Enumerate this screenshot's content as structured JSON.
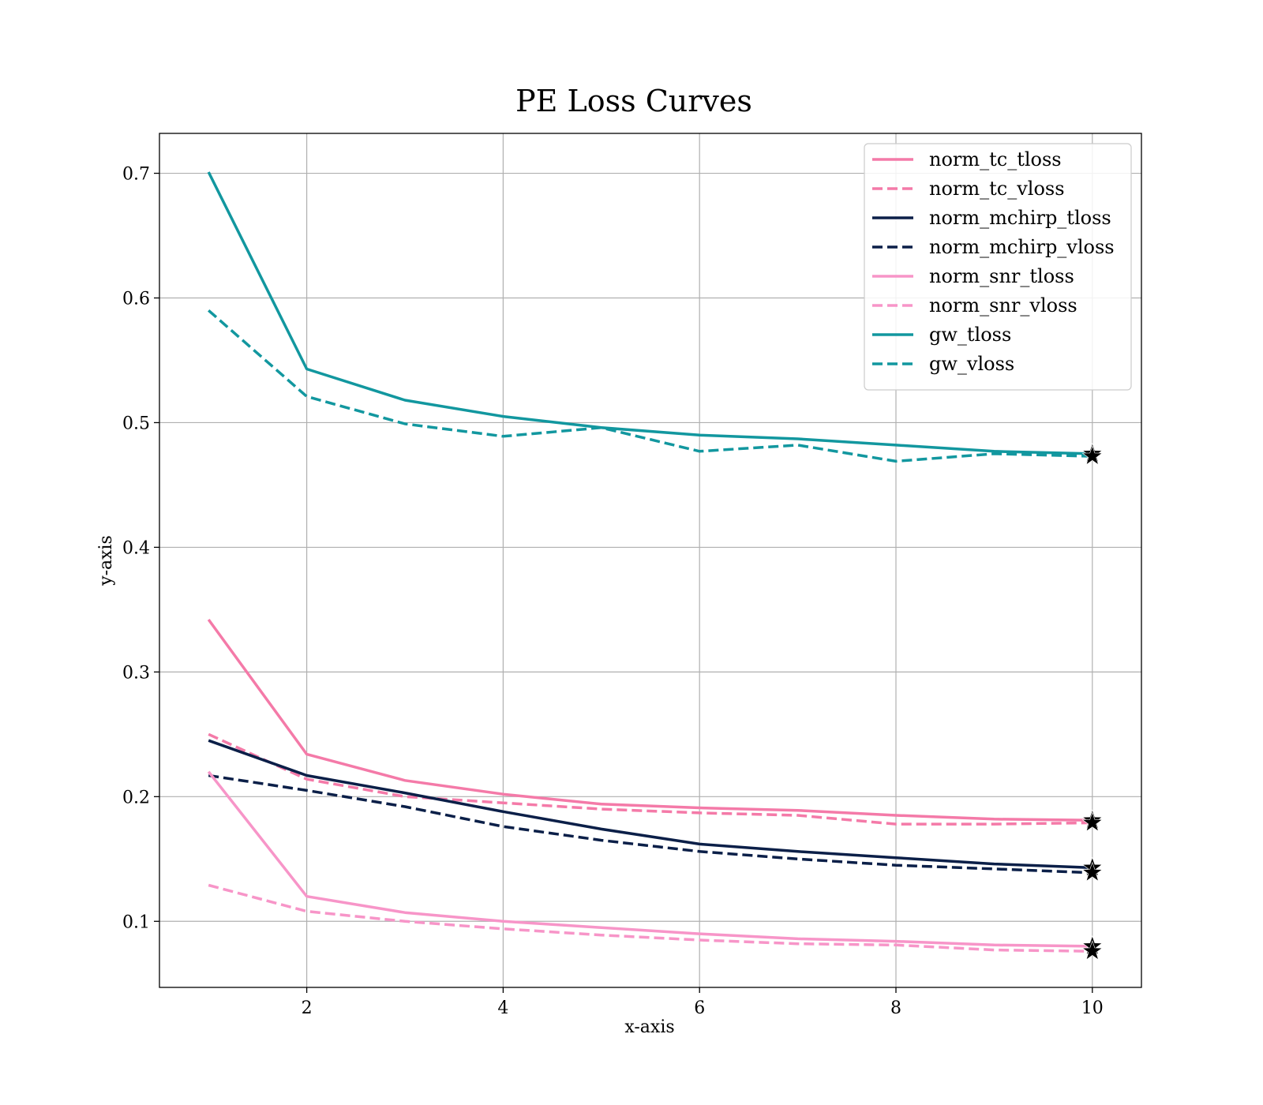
{
  "chart_data": {
    "type": "line",
    "title": "PE Loss Curves",
    "xlabel": "x-axis",
    "ylabel": "y-axis",
    "xlim": [
      0.5,
      10.5
    ],
    "ylim": [
      0.047,
      0.732
    ],
    "xticks": [
      2,
      4,
      6,
      8,
      10
    ],
    "yticks": [
      0.1,
      0.2,
      0.3,
      0.4,
      0.5,
      0.6,
      0.7
    ],
    "x": [
      1,
      2,
      3,
      4,
      5,
      6,
      7,
      8,
      9,
      10
    ],
    "grid": true,
    "legend_position": "top-right",
    "series": [
      {
        "name": "norm_tc_tloss",
        "color": "#f47aa8",
        "dash": "solid",
        "values": [
          0.342,
          0.234,
          0.213,
          0.202,
          0.194,
          0.191,
          0.189,
          0.185,
          0.182,
          0.181
        ]
      },
      {
        "name": "norm_tc_vloss",
        "color": "#f47aa8",
        "dash": "dashed",
        "values": [
          0.25,
          0.214,
          0.2,
          0.195,
          0.19,
          0.187,
          0.185,
          0.178,
          0.178,
          0.179
        ]
      },
      {
        "name": "norm_mchirp_tloss",
        "color": "#0b1f48",
        "dash": "solid",
        "values": [
          0.245,
          0.217,
          0.203,
          0.188,
          0.174,
          0.162,
          0.156,
          0.151,
          0.146,
          0.143
        ]
      },
      {
        "name": "norm_mchirp_vloss",
        "color": "#0b1f48",
        "dash": "dashed",
        "values": [
          0.217,
          0.205,
          0.192,
          0.176,
          0.165,
          0.156,
          0.15,
          0.145,
          0.142,
          0.139
        ]
      },
      {
        "name": "norm_snr_tloss",
        "color": "#f795c8",
        "dash": "solid",
        "values": [
          0.22,
          0.12,
          0.107,
          0.1,
          0.095,
          0.09,
          0.086,
          0.084,
          0.081,
          0.08
        ]
      },
      {
        "name": "norm_snr_vloss",
        "color": "#f795c8",
        "dash": "dashed",
        "values": [
          0.129,
          0.108,
          0.1,
          0.094,
          0.089,
          0.085,
          0.082,
          0.081,
          0.077,
          0.076
        ]
      },
      {
        "name": "gw_tloss",
        "color": "#12979f",
        "dash": "solid",
        "values": [
          0.701,
          0.543,
          0.518,
          0.505,
          0.496,
          0.49,
          0.487,
          0.482,
          0.477,
          0.475
        ]
      },
      {
        "name": "gw_vloss",
        "color": "#12979f",
        "dash": "dashed",
        "values": [
          0.59,
          0.521,
          0.499,
          0.489,
          0.496,
          0.477,
          0.482,
          0.469,
          0.475,
          0.473
        ]
      }
    ],
    "markers": {
      "shape": "star",
      "color": "#000000",
      "at_x": 10
    }
  }
}
